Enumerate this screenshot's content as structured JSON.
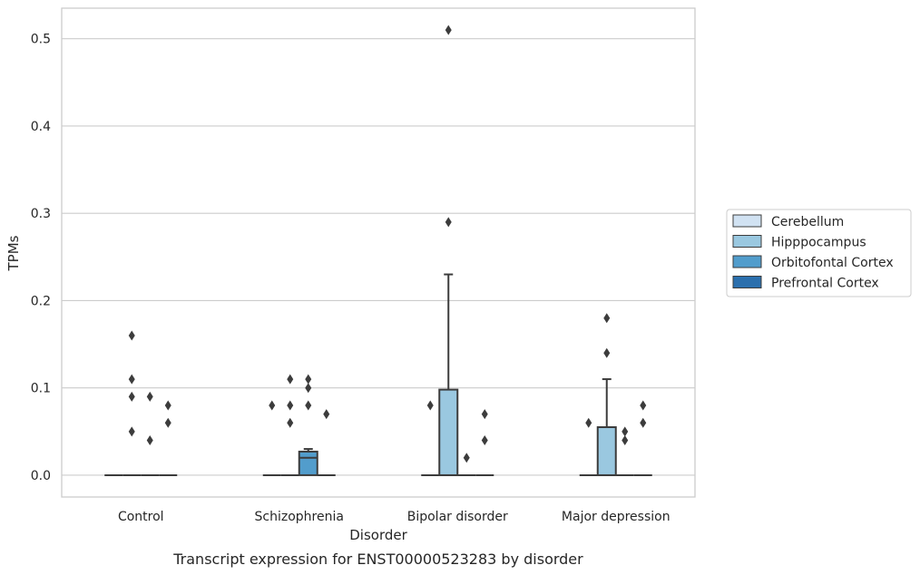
{
  "chart_data": {
    "type": "box",
    "title": "",
    "caption": "Transcript expression for ENST00000523283 by disorder",
    "xlabel": "Disorder",
    "ylabel": "TPMs",
    "categories": [
      "Control",
      "Schizophrenia",
      "Bipolar disorder",
      "Major depression"
    ],
    "ylim": [
      -0.025,
      0.535
    ],
    "yticks": [
      0.0,
      0.1,
      0.2,
      0.3,
      0.4,
      0.5
    ],
    "ytick_labels": [
      "0.0",
      "0.1",
      "0.2",
      "0.3",
      "0.4",
      "0.5"
    ],
    "grid": "horizontal",
    "legend_position": "right",
    "series": [
      {
        "name": "Cerebellum",
        "color": "#d1e2f2"
      },
      {
        "name": "Hipppocampus",
        "color": "#9ac8e0"
      },
      {
        "name": "Orbitofontal Cortex",
        "color": "#529dcc"
      },
      {
        "name": "Prefrontal Cortex",
        "color": "#2b6fad"
      }
    ],
    "boxes": [
      {
        "category": "Control",
        "series": "Cerebellum",
        "min": 0,
        "q1": 0,
        "median": 0,
        "q3": 0,
        "max": 0,
        "outliers": []
      },
      {
        "category": "Control",
        "series": "Hipppocampus",
        "min": 0,
        "q1": 0,
        "median": 0,
        "q3": 0,
        "max": 0,
        "outliers": [
          0.05,
          0.11,
          0.09,
          0.16
        ]
      },
      {
        "category": "Control",
        "series": "Orbitofontal Cortex",
        "min": 0,
        "q1": 0,
        "median": 0,
        "q3": 0,
        "max": 0,
        "outliers": [
          0.09,
          0.04
        ]
      },
      {
        "category": "Control",
        "series": "Prefrontal Cortex",
        "min": 0,
        "q1": 0,
        "median": 0,
        "q3": 0,
        "max": 0,
        "outliers": [
          0.08,
          0.06
        ]
      },
      {
        "category": "Schizophrenia",
        "series": "Cerebellum",
        "min": 0,
        "q1": 0,
        "median": 0,
        "q3": 0,
        "max": 0,
        "outliers": [
          0.08
        ]
      },
      {
        "category": "Schizophrenia",
        "series": "Hipppocampus",
        "min": 0,
        "q1": 0,
        "median": 0,
        "q3": 0,
        "max": 0,
        "outliers": [
          0.11,
          0.08,
          0.06
        ]
      },
      {
        "category": "Schizophrenia",
        "series": "Orbitofontal Cortex",
        "min": 0,
        "q1": 0,
        "median": 0.02,
        "q3": 0.027,
        "max": 0.03,
        "outliers": [
          0.11,
          0.1,
          0.08
        ]
      },
      {
        "category": "Schizophrenia",
        "series": "Prefrontal Cortex",
        "min": 0,
        "q1": 0,
        "median": 0,
        "q3": 0,
        "max": 0,
        "outliers": [
          0.07
        ]
      },
      {
        "category": "Bipolar disorder",
        "series": "Cerebellum",
        "min": 0,
        "q1": 0,
        "median": 0,
        "q3": 0,
        "max": 0,
        "outliers": [
          0.08
        ]
      },
      {
        "category": "Bipolar disorder",
        "series": "Hipppocampus",
        "min": 0,
        "q1": 0,
        "median": 0,
        "q3": 0.098,
        "max": 0.23,
        "outliers": [
          0.29,
          0.51
        ]
      },
      {
        "category": "Bipolar disorder",
        "series": "Orbitofontal Cortex",
        "min": 0,
        "q1": 0,
        "median": 0,
        "q3": 0,
        "max": 0,
        "outliers": [
          0.02
        ]
      },
      {
        "category": "Bipolar disorder",
        "series": "Prefrontal Cortex",
        "min": 0,
        "q1": 0,
        "median": 0,
        "q3": 0,
        "max": 0,
        "outliers": [
          0.07,
          0.04
        ]
      },
      {
        "category": "Major depression",
        "series": "Cerebellum",
        "min": 0,
        "q1": 0,
        "median": 0,
        "q3": 0,
        "max": 0,
        "outliers": [
          0.06
        ]
      },
      {
        "category": "Major depression",
        "series": "Hipppocampus",
        "min": 0,
        "q1": 0,
        "median": 0,
        "q3": 0.055,
        "max": 0.11,
        "outliers": [
          0.18,
          0.14
        ]
      },
      {
        "category": "Major depression",
        "series": "Orbitofontal Cortex",
        "min": 0,
        "q1": 0,
        "median": 0,
        "q3": 0,
        "max": 0,
        "outliers": [
          0.05,
          0.04
        ]
      },
      {
        "category": "Major depression",
        "series": "Prefrontal Cortex",
        "min": 0,
        "q1": 0,
        "median": 0,
        "q3": 0,
        "max": 0,
        "outliers": [
          0.08,
          0.06
        ]
      }
    ]
  }
}
